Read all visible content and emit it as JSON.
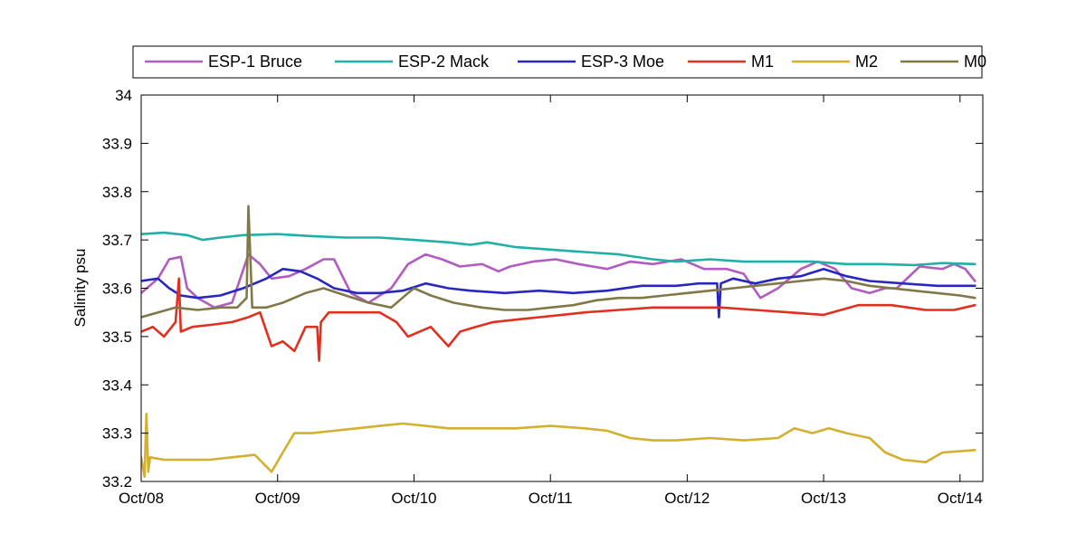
{
  "chart_data": {
    "type": "line",
    "title": "",
    "xlabel": "",
    "ylabel": "Salinity psu",
    "xlim": [
      "2008-10-01",
      "2014-12-01"
    ],
    "ylim": [
      33.2,
      34.0
    ],
    "x_ticks": [
      {
        "date": "2008-10-01",
        "label": "Oct/08"
      },
      {
        "date": "2009-10-01",
        "label": "Oct/09"
      },
      {
        "date": "2010-10-01",
        "label": "Oct/10"
      },
      {
        "date": "2011-10-01",
        "label": "Oct/11"
      },
      {
        "date": "2012-10-01",
        "label": "Oct/12"
      },
      {
        "date": "2013-10-01",
        "label": "Oct/13"
      },
      {
        "date": "2014-10-01",
        "label": "Oct/14"
      }
    ],
    "y_ticks": [
      33.2,
      33.3,
      33.4,
      33.5,
      33.6,
      33.7,
      33.8,
      33.9,
      34.0
    ],
    "grid": false,
    "legend_position": "top",
    "series": [
      {
        "name": "ESP-1 Bruce",
        "color": "#b05cc0",
        "points": [
          [
            "2008-10-01",
            33.59
          ],
          [
            "2008-11-15",
            33.62
          ],
          [
            "2008-12-15",
            33.66
          ],
          [
            "2009-01-15",
            33.665
          ],
          [
            "2009-02-01",
            33.6
          ],
          [
            "2009-03-01",
            33.58
          ],
          [
            "2009-04-15",
            33.56
          ],
          [
            "2009-06-01",
            33.57
          ],
          [
            "2009-07-15",
            33.67
          ],
          [
            "2009-08-15",
            33.65
          ],
          [
            "2009-09-15",
            33.62
          ],
          [
            "2009-11-01",
            33.625
          ],
          [
            "2009-12-15",
            33.64
          ],
          [
            "2010-02-01",
            33.66
          ],
          [
            "2010-03-01",
            33.66
          ],
          [
            "2010-04-15",
            33.59
          ],
          [
            "2010-06-01",
            33.57
          ],
          [
            "2010-08-01",
            33.6
          ],
          [
            "2010-09-15",
            33.65
          ],
          [
            "2010-11-01",
            33.67
          ],
          [
            "2010-12-15",
            33.66
          ],
          [
            "2011-02-01",
            33.645
          ],
          [
            "2011-04-01",
            33.65
          ],
          [
            "2011-05-15",
            33.635
          ],
          [
            "2011-06-15",
            33.645
          ],
          [
            "2011-08-15",
            33.655
          ],
          [
            "2011-10-15",
            33.66
          ],
          [
            "2011-12-15",
            33.65
          ],
          [
            "2012-03-01",
            33.64
          ],
          [
            "2012-05-01",
            33.655
          ],
          [
            "2012-07-01",
            33.65
          ],
          [
            "2012-09-15",
            33.66
          ],
          [
            "2012-11-15",
            33.64
          ],
          [
            "2013-01-15",
            33.64
          ],
          [
            "2013-03-01",
            33.63
          ],
          [
            "2013-04-15",
            33.58
          ],
          [
            "2013-06-01",
            33.6
          ],
          [
            "2013-08-01",
            33.64
          ],
          [
            "2013-09-15",
            33.655
          ],
          [
            "2013-11-01",
            33.64
          ],
          [
            "2013-12-15",
            33.6
          ],
          [
            "2014-02-01",
            33.59
          ],
          [
            "2014-03-15",
            33.6
          ],
          [
            "2014-04-15",
            33.6
          ],
          [
            "2014-06-15",
            33.645
          ],
          [
            "2014-08-15",
            33.64
          ],
          [
            "2014-09-15",
            33.65
          ],
          [
            "2014-10-15",
            33.64
          ],
          [
            "2014-11-10",
            33.615
          ]
        ]
      },
      {
        "name": "ESP-2 Mack",
        "color": "#20b0a8",
        "points": [
          [
            "2008-10-01",
            33.712
          ],
          [
            "2008-12-01",
            33.715
          ],
          [
            "2009-02-01",
            33.71
          ],
          [
            "2009-03-15",
            33.7
          ],
          [
            "2009-05-01",
            33.705
          ],
          [
            "2009-07-01",
            33.71
          ],
          [
            "2009-10-01",
            33.712
          ],
          [
            "2010-01-01",
            33.708
          ],
          [
            "2010-04-01",
            33.705
          ],
          [
            "2010-07-01",
            33.705
          ],
          [
            "2010-10-01",
            33.7
          ],
          [
            "2011-01-01",
            33.695
          ],
          [
            "2011-03-01",
            33.69
          ],
          [
            "2011-04-15",
            33.695
          ],
          [
            "2011-07-01",
            33.685
          ],
          [
            "2011-10-01",
            33.68
          ],
          [
            "2012-01-01",
            33.675
          ],
          [
            "2012-04-01",
            33.67
          ],
          [
            "2012-07-01",
            33.66
          ],
          [
            "2012-09-01",
            33.655
          ],
          [
            "2012-12-01",
            33.66
          ],
          [
            "2013-03-01",
            33.655
          ],
          [
            "2013-06-01",
            33.655
          ],
          [
            "2013-09-01",
            33.655
          ],
          [
            "2013-12-01",
            33.65
          ],
          [
            "2014-03-01",
            33.65
          ],
          [
            "2014-06-01",
            33.648
          ],
          [
            "2014-08-15",
            33.652
          ],
          [
            "2014-11-10",
            33.65
          ]
        ]
      },
      {
        "name": "ESP-3 Moe",
        "color": "#2828c0",
        "points": [
          [
            "2008-10-01",
            33.615
          ],
          [
            "2008-11-15",
            33.62
          ],
          [
            "2008-12-15",
            33.6
          ],
          [
            "2009-01-15",
            33.585
          ],
          [
            "2009-03-01",
            33.58
          ],
          [
            "2009-05-01",
            33.585
          ],
          [
            "2009-07-01",
            33.6
          ],
          [
            "2009-09-01",
            33.62
          ],
          [
            "2009-10-15",
            33.64
          ],
          [
            "2009-12-01",
            33.635
          ],
          [
            "2010-01-15",
            33.62
          ],
          [
            "2010-03-01",
            33.6
          ],
          [
            "2010-05-01",
            33.59
          ],
          [
            "2010-07-01",
            33.59
          ],
          [
            "2010-09-01",
            33.595
          ],
          [
            "2010-11-01",
            33.61
          ],
          [
            "2011-01-01",
            33.6
          ],
          [
            "2011-03-01",
            33.595
          ],
          [
            "2011-06-01",
            33.59
          ],
          [
            "2011-09-01",
            33.595
          ],
          [
            "2011-12-01",
            33.59
          ],
          [
            "2012-03-01",
            33.595
          ],
          [
            "2012-06-01",
            33.605
          ],
          [
            "2012-09-01",
            33.605
          ],
          [
            "2012-11-01",
            33.61
          ],
          [
            "2012-12-20",
            33.61
          ],
          [
            "2012-12-25",
            33.54
          ],
          [
            "2012-12-30",
            33.61
          ],
          [
            "2013-02-01",
            33.62
          ],
          [
            "2013-04-01",
            33.61
          ],
          [
            "2013-06-01",
            33.62
          ],
          [
            "2013-08-01",
            33.625
          ],
          [
            "2013-10-01",
            33.64
          ],
          [
            "2013-12-01",
            33.625
          ],
          [
            "2014-02-01",
            33.615
          ],
          [
            "2014-05-01",
            33.61
          ],
          [
            "2014-08-01",
            33.605
          ],
          [
            "2014-11-10",
            33.605
          ]
        ]
      },
      {
        "name": "M1",
        "color": "#e03020",
        "points": [
          [
            "2008-10-01",
            33.51
          ],
          [
            "2008-11-01",
            33.52
          ],
          [
            "2008-12-01",
            33.5
          ],
          [
            "2009-01-01",
            33.53
          ],
          [
            "2009-01-10",
            33.62
          ],
          [
            "2009-01-15",
            33.51
          ],
          [
            "2009-02-15",
            33.52
          ],
          [
            "2009-04-15",
            33.525
          ],
          [
            "2009-06-01",
            33.53
          ],
          [
            "2009-07-15",
            33.54
          ],
          [
            "2009-08-15",
            33.55
          ],
          [
            "2009-09-15",
            33.48
          ],
          [
            "2009-10-15",
            33.49
          ],
          [
            "2009-11-15",
            33.47
          ],
          [
            "2009-12-15",
            33.52
          ],
          [
            "2010-01-15",
            33.52
          ],
          [
            "2010-01-20",
            33.45
          ],
          [
            "2010-01-25",
            33.53
          ],
          [
            "2010-02-15",
            33.55
          ],
          [
            "2010-05-01",
            33.55
          ],
          [
            "2010-07-01",
            33.55
          ],
          [
            "2010-08-15",
            33.53
          ],
          [
            "2010-09-15",
            33.5
          ],
          [
            "2010-11-15",
            33.52
          ],
          [
            "2011-01-01",
            33.48
          ],
          [
            "2011-02-01",
            33.51
          ],
          [
            "2011-03-15",
            33.52
          ],
          [
            "2011-05-01",
            33.53
          ],
          [
            "2011-07-01",
            33.535
          ],
          [
            "2011-09-01",
            33.54
          ],
          [
            "2011-11-01",
            33.545
          ],
          [
            "2012-01-01",
            33.55
          ],
          [
            "2012-04-01",
            33.555
          ],
          [
            "2012-07-01",
            33.56
          ],
          [
            "2012-10-01",
            33.56
          ],
          [
            "2013-01-01",
            33.56
          ],
          [
            "2013-04-01",
            33.555
          ],
          [
            "2013-07-01",
            33.55
          ],
          [
            "2013-10-01",
            33.545
          ],
          [
            "2014-01-01",
            33.565
          ],
          [
            "2014-04-01",
            33.565
          ],
          [
            "2014-07-01",
            33.555
          ],
          [
            "2014-09-15",
            33.555
          ],
          [
            "2014-11-10",
            33.565
          ]
        ]
      },
      {
        "name": "M2",
        "color": "#d4b030",
        "points": [
          [
            "2008-10-01",
            33.25
          ],
          [
            "2008-10-10",
            33.21
          ],
          [
            "2008-10-15",
            33.34
          ],
          [
            "2008-10-20",
            33.22
          ],
          [
            "2008-10-25",
            33.25
          ],
          [
            "2008-12-01",
            33.245
          ],
          [
            "2009-02-01",
            33.245
          ],
          [
            "2009-04-01",
            33.245
          ],
          [
            "2009-06-01",
            33.25
          ],
          [
            "2009-08-01",
            33.255
          ],
          [
            "2009-09-15",
            33.22
          ],
          [
            "2009-10-15",
            33.26
          ],
          [
            "2009-11-15",
            33.3
          ],
          [
            "2010-01-01",
            33.3
          ],
          [
            "2010-03-01",
            33.305
          ],
          [
            "2010-05-01",
            33.31
          ],
          [
            "2010-07-01",
            33.315
          ],
          [
            "2010-09-01",
            33.32
          ],
          [
            "2010-11-01",
            33.315
          ],
          [
            "2011-01-01",
            33.31
          ],
          [
            "2011-04-01",
            33.31
          ],
          [
            "2011-07-01",
            33.31
          ],
          [
            "2011-10-01",
            33.315
          ],
          [
            "2012-01-01",
            33.31
          ],
          [
            "2012-03-01",
            33.305
          ],
          [
            "2012-05-01",
            33.29
          ],
          [
            "2012-07-01",
            33.285
          ],
          [
            "2012-09-01",
            33.285
          ],
          [
            "2012-12-01",
            33.29
          ],
          [
            "2013-03-01",
            33.285
          ],
          [
            "2013-06-01",
            33.29
          ],
          [
            "2013-07-15",
            33.31
          ],
          [
            "2013-09-01",
            33.3
          ],
          [
            "2013-10-15",
            33.31
          ],
          [
            "2013-12-01",
            33.3
          ],
          [
            "2014-02-01",
            33.29
          ],
          [
            "2014-03-15",
            33.26
          ],
          [
            "2014-05-01",
            33.245
          ],
          [
            "2014-07-01",
            33.24
          ],
          [
            "2014-08-15",
            33.26
          ],
          [
            "2014-11-10",
            33.265
          ]
        ]
      },
      {
        "name": "M0",
        "color": "#807848",
        "points": [
          [
            "2008-10-01",
            33.54
          ],
          [
            "2008-11-15",
            33.55
          ],
          [
            "2009-01-01",
            33.56
          ],
          [
            "2009-03-01",
            33.555
          ],
          [
            "2009-05-01",
            33.56
          ],
          [
            "2009-06-15",
            33.56
          ],
          [
            "2009-07-10",
            33.58
          ],
          [
            "2009-07-15",
            33.77
          ],
          [
            "2009-07-25",
            33.56
          ],
          [
            "2009-09-01",
            33.56
          ],
          [
            "2009-10-15",
            33.57
          ],
          [
            "2009-12-15",
            33.59
          ],
          [
            "2010-02-01",
            33.6
          ],
          [
            "2010-04-01",
            33.585
          ],
          [
            "2010-06-01",
            33.57
          ],
          [
            "2010-08-01",
            33.56
          ],
          [
            "2010-09-15",
            33.59
          ],
          [
            "2010-10-01",
            33.6
          ],
          [
            "2010-11-15",
            33.585
          ],
          [
            "2011-01-15",
            33.57
          ],
          [
            "2011-04-01",
            33.56
          ],
          [
            "2011-06-01",
            33.555
          ],
          [
            "2011-08-01",
            33.555
          ],
          [
            "2011-10-01",
            33.56
          ],
          [
            "2011-12-01",
            33.565
          ],
          [
            "2012-02-01",
            33.575
          ],
          [
            "2012-04-01",
            33.58
          ],
          [
            "2012-06-01",
            33.58
          ],
          [
            "2012-08-01",
            33.585
          ],
          [
            "2012-10-01",
            33.59
          ],
          [
            "2012-12-01",
            33.595
          ],
          [
            "2013-02-01",
            33.6
          ],
          [
            "2013-04-01",
            33.605
          ],
          [
            "2013-06-01",
            33.61
          ],
          [
            "2013-08-01",
            33.615
          ],
          [
            "2013-10-01",
            33.62
          ],
          [
            "2013-12-01",
            33.615
          ],
          [
            "2014-02-01",
            33.605
          ],
          [
            "2014-04-01",
            33.6
          ],
          [
            "2014-06-01",
            33.595
          ],
          [
            "2014-08-01",
            33.59
          ],
          [
            "2014-10-01",
            33.585
          ],
          [
            "2014-11-10",
            33.58
          ]
        ]
      }
    ]
  }
}
